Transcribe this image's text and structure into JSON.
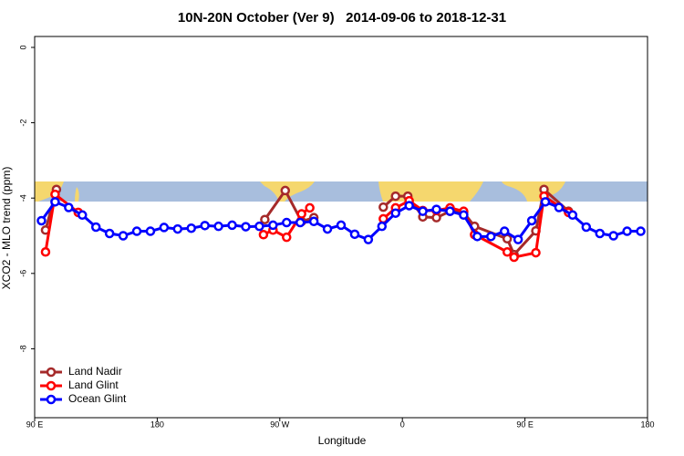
{
  "chart_data": {
    "type": "line",
    "title": "10N-20N October (Ver 9)   2014-09-06 to 2018-12-31",
    "xlabel": "Longitude",
    "ylabel": "XCO2 - MLO trend (ppm)",
    "xlim": [
      90,
      540
    ],
    "ylim": [
      -9.83,
      0.29
    ],
    "xticks": [
      {
        "value": 90,
        "label": "90 E"
      },
      180,
      {
        "value": 270,
        "label": "90 W"
      },
      {
        "value": 360,
        "label": "0"
      },
      {
        "value": 450,
        "label": "90 E"
      },
      {
        "value": 540,
        "label": "180"
      }
    ],
    "yticks": [
      0,
      -2,
      -4,
      -6,
      -8
    ],
    "legend": "bottom-left",
    "series": [
      {
        "name": "Land Nadir",
        "color": "#a52a2a",
        "x": [
          98,
          106,
          200,
          259,
          274,
          286,
          295,
          330,
          346,
          355,
          364,
          375,
          385,
          395,
          405,
          413,
          437,
          442,
          458,
          464,
          482
        ],
        "values": [
          -4.85,
          -3.77,
          null,
          -4.57,
          -3.8,
          -4.62,
          -4.52,
          null,
          -4.24,
          -3.95,
          -3.95,
          -4.5,
          -4.52,
          -4.35,
          -4.38,
          -4.75,
          -5.08,
          -5.5,
          -4.87,
          -3.77,
          -4.35
        ]
      },
      {
        "name": "Land Glint",
        "color": "#ff0000",
        "x": [
          98,
          105,
          122,
          200,
          258,
          265,
          275,
          286,
          292,
          330,
          346,
          355,
          365,
          375,
          385,
          395,
          405,
          413,
          437,
          442,
          458,
          464,
          482
        ],
        "values": [
          -5.43,
          -3.9,
          -4.38,
          null,
          -4.97,
          -4.85,
          -5.04,
          -4.42,
          -4.26,
          null,
          -4.55,
          -4.26,
          -4.07,
          -4.33,
          -4.33,
          -4.26,
          -4.35,
          -4.97,
          -5.43,
          -5.57,
          -5.45,
          -3.95,
          -4.38
        ]
      },
      {
        "name": "Ocean Glint",
        "color": "#0000ff",
        "x": [
          95,
          105,
          115,
          125,
          135,
          145,
          155,
          165,
          175,
          185,
          195,
          205,
          215,
          225,
          235,
          245,
          255,
          265,
          275,
          285,
          295,
          305,
          315,
          325,
          335,
          345,
          355,
          365,
          375,
          385,
          395,
          405,
          415,
          425,
          435,
          445,
          455,
          465,
          475,
          485,
          495,
          505,
          515,
          525,
          535
        ],
        "values": [
          -4.6,
          -4.1,
          -4.25,
          -4.45,
          -4.77,
          -4.94,
          -5.0,
          -4.88,
          -4.88,
          -4.78,
          -4.82,
          -4.8,
          -4.73,
          -4.75,
          -4.72,
          -4.76,
          -4.75,
          -4.72,
          -4.65,
          -4.65,
          -4.62,
          -4.82,
          -4.72,
          -4.96,
          -5.1,
          -4.75,
          -4.4,
          -4.2,
          -4.35,
          -4.3,
          -4.35,
          -4.45,
          -5.02,
          -5.02,
          -4.88,
          -5.1,
          -4.6,
          -4.1,
          -4.25,
          -4.45,
          -4.77,
          -4.94,
          -5.0,
          -4.88,
          -4.88
        ]
      }
    ]
  }
}
